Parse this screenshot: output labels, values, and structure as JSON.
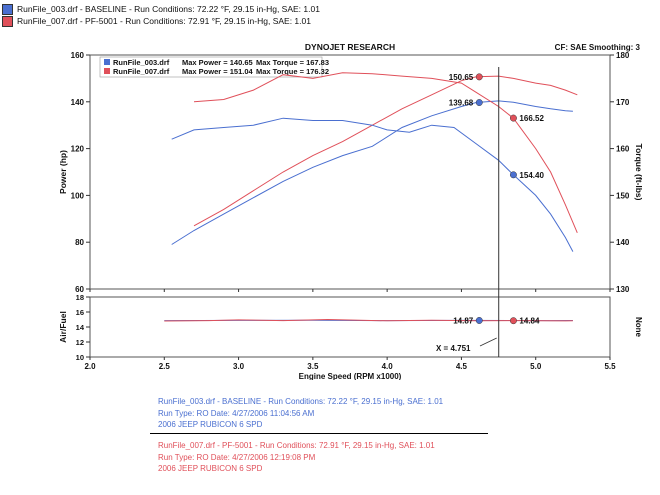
{
  "header": {
    "runs": [
      {
        "label": "RunFile_003.drf - BASELINE  -  Run Conditions: 72.22 °F, 29.15 in-Hg, SAE: 1.01",
        "color": "#4a6fd0"
      },
      {
        "label": "RunFile_007.drf - PF-5001  -  Run Conditions: 72.91 °F, 29.15 in-Hg, SAE: 1.01",
        "color": "#e0505a"
      }
    ]
  },
  "chart_data": [
    {
      "type": "line",
      "title": "DYNOJET RESEARCH",
      "corner_note": "CF: SAE  Smoothing: 3",
      "xlabel": "Engine Speed (RPM x1000)",
      "ylabel": "Power (hp)",
      "ylabel_right": "Torque (ft-lbs)",
      "xlim": [
        2.0,
        5.5
      ],
      "ylim": [
        60,
        160
      ],
      "ylim_right": [
        130,
        180
      ],
      "xticks": [
        "2.0",
        "2.5",
        "3.0",
        "3.5",
        "4.0",
        "4.5",
        "5.0",
        "5.5"
      ],
      "yticks": [
        "60",
        "80",
        "100",
        "120",
        "140",
        "160"
      ],
      "yticks_right": [
        "130",
        "140",
        "150",
        "160",
        "170",
        "180"
      ],
      "cursor_x": 4.751,
      "legend": [
        {
          "name": "RunFile_003.drf",
          "max_power": "Max Power = 140.65",
          "max_torque": "Max Torque = 167.83",
          "color": "#4a6fd0"
        },
        {
          "name": "RunFile_007.drf",
          "max_power": "Max Power = 151.04",
          "max_torque": "Max Torque = 176.32",
          "color": "#e0505a"
        }
      ],
      "series": [
        {
          "name": "Baseline Power",
          "axis": "left",
          "color": "#4a6fd0",
          "x": [
            2.55,
            2.7,
            2.9,
            3.1,
            3.3,
            3.5,
            3.7,
            3.9,
            4.1,
            4.3,
            4.5,
            4.6,
            4.75,
            4.85,
            5.0,
            5.1,
            5.2,
            5.25
          ],
          "y": [
            79,
            85,
            92,
            99,
            106,
            112,
            117,
            121,
            129,
            134,
            138,
            139.7,
            140.4,
            139.8,
            138,
            137,
            136.2,
            136
          ]
        },
        {
          "name": "PF-5001 Power",
          "axis": "left",
          "color": "#e0505a",
          "x": [
            2.7,
            2.9,
            3.1,
            3.3,
            3.5,
            3.7,
            3.9,
            4.1,
            4.3,
            4.5,
            4.6,
            4.75,
            4.85,
            5.0,
            5.1,
            5.2,
            5.28
          ],
          "y": [
            87,
            94,
            102,
            110,
            117,
            123,
            130,
            137,
            143,
            149,
            150.7,
            151,
            150,
            148,
            147,
            145,
            143
          ]
        },
        {
          "name": "Baseline Torque",
          "axis": "right",
          "color": "#4a6fd0",
          "x": [
            2.55,
            2.7,
            2.9,
            3.1,
            3.3,
            3.5,
            3.7,
            3.9,
            4.0,
            4.15,
            4.3,
            4.45,
            4.6,
            4.75,
            4.85,
            5.0,
            5.1,
            5.2,
            5.25
          ],
          "y": [
            162,
            164,
            164.5,
            165,
            166.5,
            166,
            166,
            165,
            164,
            163.5,
            165,
            164.5,
            161,
            157.5,
            154.4,
            150,
            146,
            141,
            138
          ]
        },
        {
          "name": "PF-5001 Torque",
          "axis": "right",
          "color": "#e0505a",
          "x": [
            2.7,
            2.9,
            3.1,
            3.3,
            3.5,
            3.7,
            3.9,
            4.1,
            4.3,
            4.5,
            4.6,
            4.75,
            4.85,
            5.0,
            5.1,
            5.2,
            5.28
          ],
          "y": [
            170,
            170.5,
            172.5,
            175.8,
            175,
            176.2,
            176,
            175.5,
            175,
            174,
            172,
            169,
            166.5,
            160,
            155,
            148,
            142
          ]
        }
      ],
      "markers": [
        {
          "x": 4.62,
          "y": 139.68,
          "axis": "left",
          "color": "#4a6fd0",
          "label": "139.68",
          "label_side": "left"
        },
        {
          "x": 4.62,
          "y": 150.65,
          "axis": "left",
          "color": "#e0505a",
          "label": "150.65",
          "label_side": "left"
        },
        {
          "x": 4.85,
          "y": 166.52,
          "axis": "right",
          "color": "#e0505a",
          "label": "166.52",
          "label_side": "right"
        },
        {
          "x": 4.85,
          "y": 154.4,
          "axis": "right",
          "color": "#4a6fd0",
          "label": "154.40",
          "label_side": "right"
        }
      ]
    },
    {
      "type": "line",
      "ylabel": "Air/Fuel",
      "ylabel_right": "None",
      "xlim": [
        2.0,
        5.5
      ],
      "ylim": [
        10,
        18
      ],
      "yticks": [
        "10",
        "12",
        "14",
        "16",
        "18"
      ],
      "cursor_label": "X = 4.751",
      "series": [
        {
          "name": "Baseline AFR",
          "color": "#4a6fd0",
          "x": [
            2.5,
            3.0,
            3.5,
            4.0,
            4.5,
            4.9,
            5.1,
            5.25
          ],
          "y": [
            14.85,
            14.88,
            14.9,
            14.86,
            14.88,
            14.87,
            14.86,
            14.87
          ]
        },
        {
          "name": "PF-5001 AFR",
          "color": "#e0505a",
          "x": [
            2.5,
            2.8,
            3.0,
            3.3,
            3.6,
            4.0,
            4.3,
            4.6,
            4.9,
            5.2,
            5.25
          ],
          "y": [
            14.8,
            14.86,
            14.95,
            14.85,
            15.0,
            14.83,
            14.9,
            14.84,
            14.86,
            14.82,
            14.84
          ]
        }
      ],
      "markers": [
        {
          "x": 4.62,
          "y": 14.87,
          "color": "#4a6fd0",
          "label": "14.87",
          "label_side": "left"
        },
        {
          "x": 4.85,
          "y": 14.84,
          "color": "#e0505a",
          "label": "14.84",
          "label_side": "right"
        }
      ]
    }
  ],
  "footer": {
    "run1": {
      "color": "#4a6fd0",
      "lines": [
        "RunFile_003.drf - BASELINE  -  Run Conditions: 72.22 °F, 29.15 in-Hg, SAE: 1.01",
        "Run Type: RO  Date: 4/27/2006 11:04:56 AM",
        "2006 JEEP RUBICON 6 SPD"
      ]
    },
    "run2": {
      "color": "#e0505a",
      "lines": [
        "RunFile_007.drf - PF-5001  -  Run Conditions: 72.91 °F, 29.15 in-Hg, SAE: 1.01",
        "Run Type: RO  Date: 4/27/2006 12:19:08 PM",
        "2006 JEEP RUBICON 6 SPD"
      ]
    }
  }
}
